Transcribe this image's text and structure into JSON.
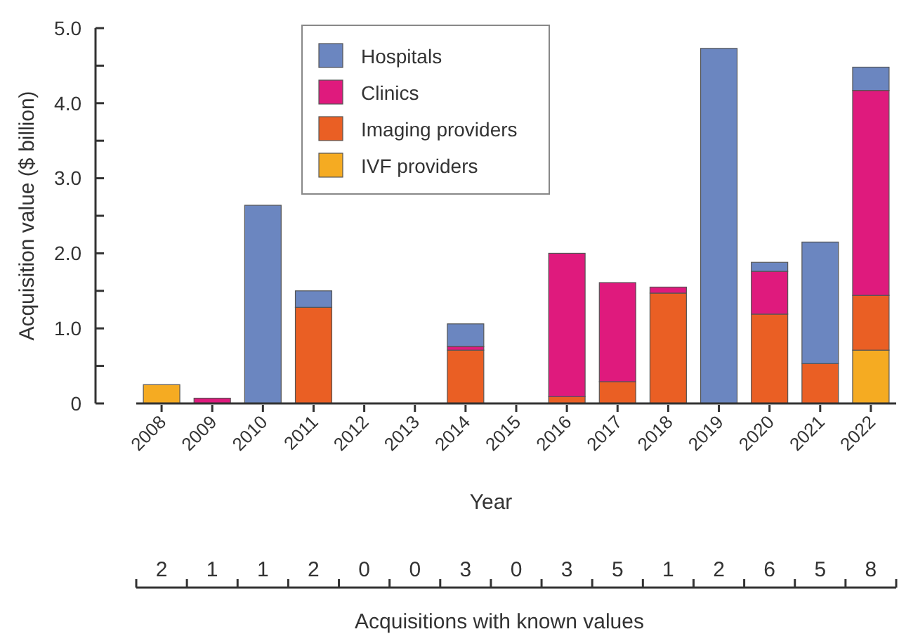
{
  "chart_data": {
    "type": "bar",
    "stacked": true,
    "xlabel": "Year",
    "ylabel": "Acquisition value ($ billion)",
    "categories": [
      "2008",
      "2009",
      "2010",
      "2011",
      "2012",
      "2013",
      "2014",
      "2015",
      "2016",
      "2017",
      "2018",
      "2019",
      "2020",
      "2021",
      "2022"
    ],
    "series": [
      {
        "name": "IVF providers",
        "color": "#f5ab22",
        "values": [
          0.25,
          null,
          null,
          null,
          null,
          null,
          null,
          null,
          null,
          null,
          null,
          null,
          null,
          null,
          0.71
        ]
      },
      {
        "name": "Imaging providers",
        "color": "#ea5f24",
        "values": [
          null,
          null,
          null,
          1.28,
          null,
          null,
          0.71,
          null,
          0.09,
          0.29,
          1.47,
          null,
          1.19,
          0.53,
          0.73
        ]
      },
      {
        "name": "Clinics",
        "color": "#df1a7d",
        "values": [
          null,
          0.07,
          null,
          null,
          null,
          null,
          0.05,
          null,
          1.91,
          1.32,
          0.08,
          null,
          0.57,
          null,
          2.73
        ]
      },
      {
        "name": "Hospitals",
        "color": "#6b86c0",
        "values": [
          null,
          null,
          2.64,
          0.22,
          null,
          null,
          0.3,
          null,
          null,
          null,
          null,
          4.73,
          0.12,
          1.62,
          0.31
        ]
      }
    ],
    "ylim": [
      0,
      5
    ],
    "yticks": [
      {
        "value": 0,
        "label": "0"
      },
      {
        "value": 1,
        "label": "1.0"
      },
      {
        "value": 2,
        "label": "2.0"
      },
      {
        "value": 3,
        "label": "3.0"
      },
      {
        "value": 4,
        "label": "4.0"
      },
      {
        "value": 5,
        "label": "5.0"
      }
    ],
    "legend": "top",
    "annotations": [
      "2",
      "1",
      "1",
      "2",
      "0",
      "0",
      "3",
      "0",
      "3",
      "5",
      "1",
      "2",
      "6",
      "5",
      "8",
      "Acquisitions with known values"
    ]
  }
}
